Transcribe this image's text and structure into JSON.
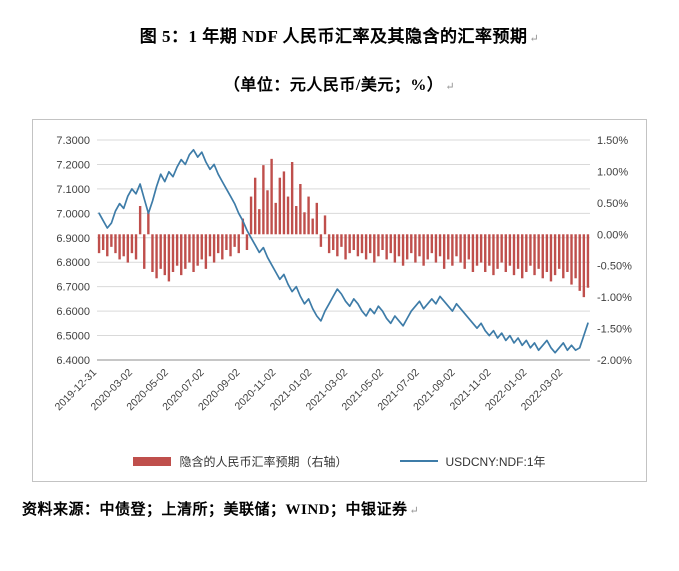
{
  "page": {
    "title": "图 5：1 年期 NDF 人民币汇率及其隐含的汇率预期",
    "subtitle": "（单位：元人民币/美元；%）",
    "source": "资料来源：中债登；上清所；美联储；WIND；中银证券",
    "paragraph_mark": "↵"
  },
  "chart_data": {
    "type": "combo",
    "title": "图 5：1 年期 NDF 人民币汇率及其隐含的汇率预期",
    "subtitle": "（单位：元人民币/美元；%）",
    "grid": "horizontal",
    "legend_position": "bottom",
    "x_tick_labels": [
      "2019-12-31",
      "2020-03-02",
      "2020-05-02",
      "2020-07-02",
      "2020-09-02",
      "2020-11-02",
      "2021-01-02",
      "2021-03-02",
      "2021-05-02",
      "2021-07-02",
      "2021-09-02",
      "2021-11-02",
      "2022-01-02",
      "2022-03-02"
    ],
    "x_tick_months": [
      0,
      2,
      4,
      6,
      8,
      10,
      12,
      14,
      16,
      18,
      20,
      22,
      24,
      26
    ],
    "x_span_months": 27.5,
    "left_axis": {
      "min": 6.4,
      "max": 7.3,
      "ticks": [
        "7.3000",
        "7.2000",
        "7.1000",
        "7.0000",
        "6.9000",
        "6.8000",
        "6.7000",
        "6.6000",
        "6.5000",
        "6.4000"
      ]
    },
    "right_axis": {
      "min": -2.0,
      "max": 1.5,
      "ticks": [
        "1.50%",
        "1.00%",
        "0.50%",
        "0.00%",
        "-0.50%",
        "-1.00%",
        "-1.50%",
        "-2.00%"
      ]
    },
    "series": [
      {
        "name": "隐含的人民币汇率预期（右轴）",
        "type": "bar",
        "axis": "right",
        "color": "#bf4f4c",
        "values": [
          -0.3,
          -0.25,
          -0.35,
          -0.2,
          -0.3,
          -0.4,
          -0.35,
          -0.45,
          -0.3,
          -0.4,
          0.45,
          -0.55,
          0.35,
          -0.6,
          -0.7,
          -0.55,
          -0.65,
          -0.75,
          -0.6,
          -0.5,
          -0.65,
          -0.55,
          -0.45,
          -0.6,
          -0.5,
          -0.4,
          -0.55,
          -0.35,
          -0.45,
          -0.3,
          -0.4,
          -0.25,
          -0.35,
          -0.2,
          -0.3,
          0.25,
          -0.25,
          0.6,
          0.9,
          0.4,
          1.1,
          0.7,
          1.2,
          0.5,
          0.9,
          1.0,
          0.6,
          1.15,
          0.45,
          0.8,
          0.35,
          0.6,
          0.25,
          0.5,
          -0.2,
          0.3,
          -0.3,
          -0.25,
          -0.35,
          -0.2,
          -0.4,
          -0.3,
          -0.25,
          -0.35,
          -0.3,
          -0.4,
          -0.3,
          -0.45,
          -0.35,
          -0.25,
          -0.4,
          -0.3,
          -0.45,
          -0.35,
          -0.5,
          -0.4,
          -0.3,
          -0.45,
          -0.35,
          -0.5,
          -0.4,
          -0.3,
          -0.45,
          -0.35,
          -0.55,
          -0.4,
          -0.5,
          -0.35,
          -0.45,
          -0.55,
          -0.4,
          -0.6,
          -0.5,
          -0.45,
          -0.6,
          -0.5,
          -0.65,
          -0.55,
          -0.45,
          -0.6,
          -0.5,
          -0.65,
          -0.55,
          -0.7,
          -0.6,
          -0.5,
          -0.65,
          -0.55,
          -0.7,
          -0.6,
          -0.75,
          -0.65,
          -0.55,
          -0.7,
          -0.6,
          -0.8,
          -0.7,
          -0.9,
          -1.0,
          -0.85
        ]
      },
      {
        "name": "USDCNY:NDF:1年",
        "type": "line",
        "axis": "left",
        "color": "#3e7ca8",
        "values": [
          7.0,
          6.97,
          6.94,
          6.96,
          7.01,
          7.04,
          7.02,
          7.07,
          7.1,
          7.08,
          7.12,
          7.06,
          7.0,
          7.05,
          7.11,
          7.16,
          7.13,
          7.17,
          7.15,
          7.19,
          7.22,
          7.2,
          7.24,
          7.26,
          7.23,
          7.25,
          7.21,
          7.18,
          7.2,
          7.16,
          7.13,
          7.1,
          7.07,
          7.04,
          7.0,
          6.97,
          6.93,
          6.9,
          6.87,
          6.84,
          6.86,
          6.82,
          6.79,
          6.76,
          6.73,
          6.75,
          6.71,
          6.68,
          6.7,
          6.66,
          6.63,
          6.65,
          6.61,
          6.58,
          6.56,
          6.6,
          6.63,
          6.66,
          6.69,
          6.67,
          6.64,
          6.62,
          6.65,
          6.63,
          6.6,
          6.58,
          6.61,
          6.59,
          6.62,
          6.6,
          6.57,
          6.55,
          6.58,
          6.56,
          6.54,
          6.57,
          6.6,
          6.62,
          6.64,
          6.61,
          6.63,
          6.65,
          6.63,
          6.66,
          6.64,
          6.62,
          6.6,
          6.63,
          6.61,
          6.59,
          6.57,
          6.55,
          6.53,
          6.55,
          6.52,
          6.5,
          6.52,
          6.49,
          6.51,
          6.48,
          6.5,
          6.47,
          6.49,
          6.46,
          6.48,
          6.45,
          6.47,
          6.44,
          6.46,
          6.48,
          6.45,
          6.43,
          6.45,
          6.47,
          6.44,
          6.46,
          6.44,
          6.45,
          6.5,
          6.55
        ]
      }
    ]
  },
  "legend": {
    "bar_label": "隐含的人民币汇率预期（右轴）",
    "line_label": "USDCNY:NDF:1年"
  }
}
